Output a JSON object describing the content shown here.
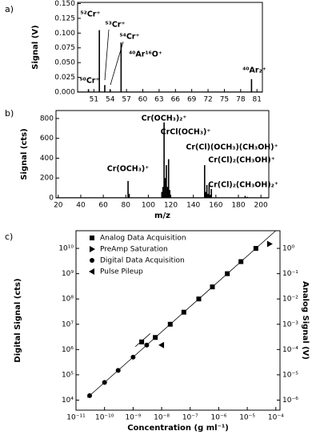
{
  "chart_data": [
    {
      "type": "spectrum",
      "panel_label": "a)",
      "ylabel": "Signal (V)",
      "x": [
        50,
        52,
        53,
        54,
        56,
        80
      ],
      "values": [
        0.005,
        0.105,
        0.012,
        0.004,
        0.084,
        0.022
      ],
      "color": "#000000",
      "xlim": [
        48,
        82
      ],
      "xticks": [
        51,
        54,
        57,
        60,
        63,
        66,
        69,
        72,
        75,
        78,
        81
      ],
      "ylim": [
        0,
        0.152
      ],
      "yticks": [
        {
          "value": 0,
          "label": "0.000"
        },
        {
          "value": 0.025,
          "label": "0.025"
        },
        {
          "value": 0.05,
          "label": "0.050"
        },
        {
          "value": 0.075,
          "label": "0.075"
        },
        {
          "value": 0.1,
          "label": "0.100"
        },
        {
          "value": 0.125,
          "label": "0.125"
        },
        {
          "value": 0.15,
          "label": "0.150"
        }
      ],
      "annotations": [
        "⁵⁰Cr⁺",
        "⁵²Cr⁺",
        "⁵³Cr⁺",
        "⁵⁴Cr⁺",
        "⁴⁰Ar¹⁶O⁺",
        "⁴⁰Ar₂⁺"
      ]
    },
    {
      "type": "spectrum",
      "panel_label": "b)",
      "xlabel": "m/z",
      "ylabel": "Signal (cts)",
      "x": [
        82,
        83,
        112,
        113,
        114,
        115,
        116,
        117,
        118,
        119,
        150,
        151,
        152,
        153,
        154,
        155,
        156,
        186,
        188
      ],
      "values": [
        170,
        40,
        60,
        110,
        760,
        200,
        330,
        110,
        390,
        80,
        330,
        60,
        130,
        40,
        140,
        30,
        90,
        20,
        10
      ],
      "color": "#000000",
      "xlim": [
        18,
        207
      ],
      "xticks": [
        20,
        40,
        60,
        80,
        100,
        120,
        140,
        160,
        180,
        200
      ],
      "ylim": [
        0,
        880
      ],
      "yticks": [
        0,
        200,
        400,
        600,
        800
      ],
      "annotations": [
        "Cr(OCH₃)⁺",
        "Cr(OCH₃)₂⁺",
        "CrCl(OCH₃)⁺",
        "Cr(Cl)(OCH₃)(CH₃OH)⁺",
        "Cr(Cl)₂(CH₃OH)⁺",
        "Cr(Cl)₂(CH₃OH)₂⁺"
      ]
    },
    {
      "type": "scatter",
      "panel_label": "c)",
      "xlabel": "Concentration   (g ml⁻¹)",
      "ylabel": "Digital Signal (cts)",
      "y2label": "Analog Signal (V)",
      "xlog": true,
      "ylog": true,
      "y2log": true,
      "legend": "upper left",
      "xlim": [
        1e-11,
        0.00014
      ],
      "xticks": [
        {
          "value": 1e-11,
          "label": "10⁻¹¹"
        },
        {
          "value": 1e-10,
          "label": "10⁻¹⁰"
        },
        {
          "value": 1e-09,
          "label": "10⁻⁹"
        },
        {
          "value": 1e-08,
          "label": "10⁻⁸"
        },
        {
          "value": 1e-07,
          "label": "10⁻⁷"
        },
        {
          "value": 1e-06,
          "label": "10⁻⁶"
        },
        {
          "value": 1e-05,
          "label": "10⁻⁵"
        },
        {
          "value": 0.0001,
          "label": "10⁻⁴"
        }
      ],
      "ylim": [
        4000,
        50000000000
      ],
      "yticks": [
        {
          "value": 10000,
          "label": "10⁴"
        },
        {
          "value": 100000,
          "label": "10⁵"
        },
        {
          "value": 1000000,
          "label": "10⁶"
        },
        {
          "value": 10000000,
          "label": "10⁷"
        },
        {
          "value": 100000000,
          "label": "10⁸"
        },
        {
          "value": 1000000000,
          "label": "10⁹"
        },
        {
          "value": 10000000000,
          "label": "10¹⁰"
        }
      ],
      "y2lim": [
        4e-07,
        5
      ],
      "y2ticks": [
        {
          "value": 1e-06,
          "label": "10⁻⁶"
        },
        {
          "value": 1e-05,
          "label": "10⁻⁵"
        },
        {
          "value": 0.0001,
          "label": "10⁻⁴"
        },
        {
          "value": 0.001,
          "label": "10⁻³"
        },
        {
          "value": 0.01,
          "label": "10⁻²"
        },
        {
          "value": 0.1,
          "label": "10⁻¹"
        },
        {
          "value": 1,
          "label": "10⁰"
        }
      ],
      "series": [
        {
          "name": "Analog Data Acquisition",
          "marker": "square",
          "color": "#000000",
          "x": [
            2e-09,
            6e-09,
            2e-08,
            6e-08,
            2e-07,
            6e-07,
            2e-06,
            6e-06,
            2e-05
          ],
          "values": [
            2000000,
            3000000,
            10000000,
            30000000,
            100000000,
            300000000,
            1000000000,
            3000000000,
            10000000000
          ]
        },
        {
          "name": "PreAmp Saturation",
          "marker": "triangle-right",
          "color": "#000000",
          "x": [
            6e-05
          ],
          "values": [
            15000000000
          ]
        },
        {
          "name": "Digital Data Acquisition",
          "marker": "circle",
          "color": "#000000",
          "x": [
            3e-11,
            1e-10,
            3e-10,
            1e-09,
            3e-09
          ],
          "values": [
            15000,
            50000,
            150000,
            500000,
            1500000
          ]
        },
        {
          "name": "Pulse Pileup",
          "marker": "triangle-left",
          "color": "#000000",
          "x": [
            1e-08
          ],
          "values": [
            1500000
          ]
        },
        {
          "marker": "none",
          "color": "#000000",
          "x": [
            2.5e-11,
            0.0001
          ],
          "values": [
            12500,
            50000000000
          ]
        },
        {
          "marker": "none",
          "color": "#000000",
          "x": [
            1.2e-09,
            4e-09
          ],
          "values": [
            1300000,
            4300000
          ]
        }
      ]
    }
  ]
}
